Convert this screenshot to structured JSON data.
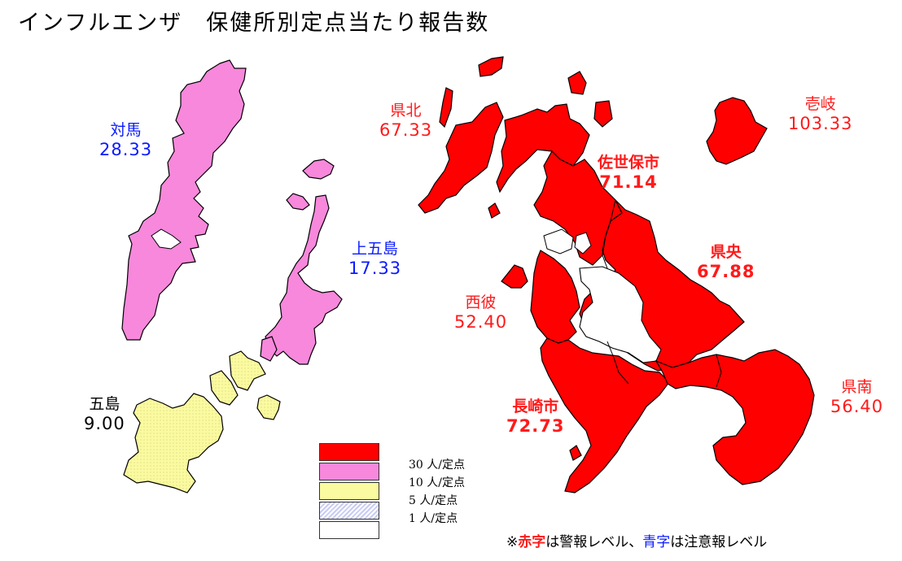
{
  "title": "インフルエンザ　保健所別定点当たり報告数",
  "regions": {
    "tsushima": {
      "name": "対馬",
      "value": "28.33",
      "color": "#f788dc"
    },
    "kamigoto": {
      "name": "上五島",
      "value": "17.33",
      "color": "#f788dc"
    },
    "goto": {
      "name": "五島",
      "value": "9.00",
      "color": "#fafaa0"
    },
    "kenhoku": {
      "name": "県北",
      "value": "67.33",
      "color": "#ff0000"
    },
    "iki": {
      "name": "壱岐",
      "value": "103.33",
      "color": "#ff0000"
    },
    "sasebo": {
      "name": "佐世保市",
      "value": "71.14",
      "color": "#ff0000"
    },
    "kenou": {
      "name": "県央",
      "value": "67.88",
      "color": "#ff0000"
    },
    "saihi": {
      "name": "西彼",
      "value": "52.40",
      "color": "#ff0000"
    },
    "nagasaki": {
      "name": "長崎市",
      "value": "72.73",
      "color": "#ff0000"
    },
    "kennan": {
      "name": "県南",
      "value": "56.40",
      "color": "#ff0000"
    }
  },
  "legend": [
    {
      "label": "30 人/定点",
      "color": "#ff0000",
      "pattern": "solid"
    },
    {
      "label": "10 人/定点",
      "color": "#f788dc",
      "pattern": "solid"
    },
    {
      "label": "5 人/定点",
      "color": "#fafaa0",
      "pattern": "solid"
    },
    {
      "label": "1 人/定点",
      "color": "#c8ccf4",
      "pattern": "hatch"
    },
    {
      "label": "",
      "color": "#ffffff",
      "pattern": "none"
    }
  ],
  "note": {
    "prefix": "※",
    "red_word": "赤字",
    "middle": "は警報レベル、",
    "blue_word": "青字",
    "suffix": "は注意報レベル",
    "red_color": "#ff1a1a",
    "blue_color": "#0a1aff"
  }
}
